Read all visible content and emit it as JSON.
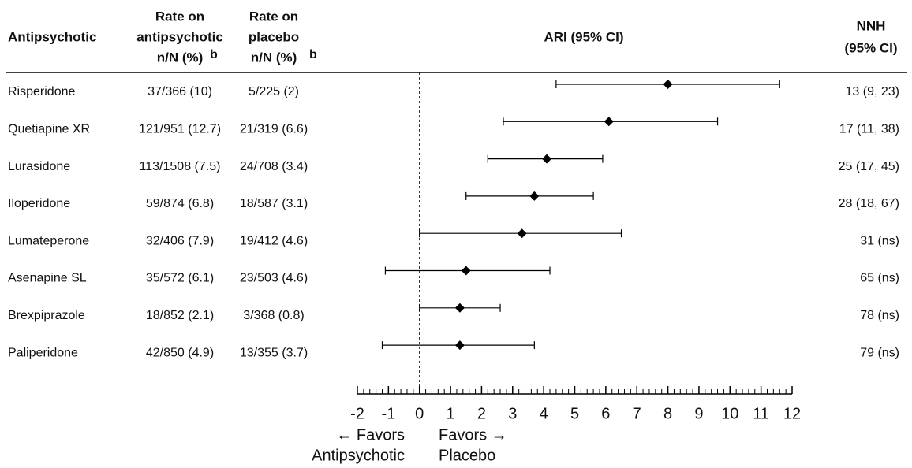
{
  "chart_data": {
    "type": "forest",
    "headers": {
      "name": "Antipsychotic",
      "drug": [
        "Rate on",
        "antipsychotic",
        "n/N (%)"
      ],
      "placebo": [
        "Rate on",
        "placebo",
        "n/N (%)"
      ],
      "footnote": "b",
      "ari": "ARI (95% CI)",
      "nnh": [
        "NNH",
        "(95% CI)"
      ]
    },
    "categories": [
      "Risperidone",
      "Quetiapine XR",
      "Lurasidone",
      "Iloperidone",
      "Lumateperone",
      "Asenapine SL",
      "Brexpiprazole",
      "Paliperidone"
    ],
    "rate_antipsychotic": [
      "37/366 (10)",
      "121/951 (12.7)",
      "113/1508 (7.5)",
      "59/874 (6.8)",
      "32/406 (7.9)",
      "35/572 (6.1)",
      "18/852 (2.1)",
      "42/850 (4.9)"
    ],
    "rate_placebo": [
      "5/225 (2)",
      "21/319 (6.6)",
      "24/708 (3.4)",
      "18/587 (3.1)",
      "19/412 (4.6)",
      "23/503 (4.6)",
      "3/368 (0.8)",
      "13/355 (3.7)"
    ],
    "values": [
      8.0,
      6.1,
      4.1,
      3.7,
      3.3,
      1.5,
      1.3,
      1.3
    ],
    "ci_low": [
      4.4,
      2.7,
      2.2,
      1.5,
      0.0,
      -1.1,
      0.0,
      -1.2
    ],
    "ci_high": [
      11.6,
      9.6,
      5.9,
      5.6,
      6.5,
      4.2,
      2.6,
      3.7
    ],
    "nnh": [
      "13 (9, 23)",
      "17 (11, 38)",
      "25 (17, 45)",
      "28 (18, 67)",
      "31 (ns)",
      "65 (ns)",
      "78 (ns)",
      "79 (ns)"
    ],
    "xlim": [
      -2,
      12
    ],
    "xticks": [
      -2,
      -1,
      0,
      1,
      2,
      3,
      4,
      5,
      6,
      7,
      8,
      9,
      10,
      11,
      12
    ],
    "minor_tick_step": 0.2,
    "reference_line": 0,
    "favors_left": [
      "← Favors",
      "Antipsychotic"
    ],
    "favors_right": [
      "Favors →",
      "Placebo"
    ],
    "color": "#000000"
  }
}
